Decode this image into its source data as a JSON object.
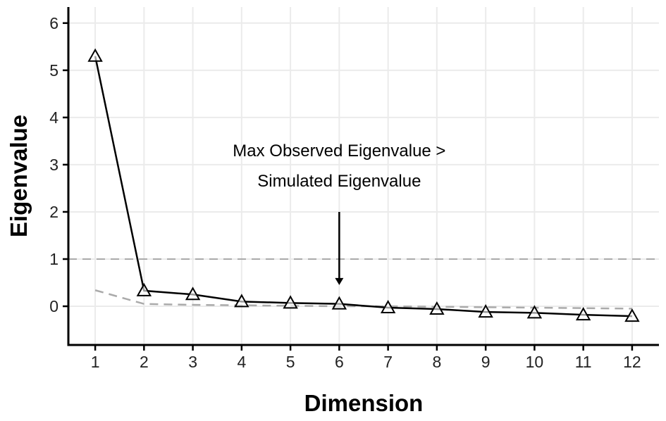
{
  "chart_data": {
    "type": "line",
    "xlabel": "Dimension",
    "ylabel": "Eigenvalue",
    "x": [
      1,
      2,
      3,
      4,
      5,
      6,
      7,
      8,
      9,
      10,
      11,
      12
    ],
    "xticks": [
      "1",
      "2",
      "3",
      "4",
      "5",
      "6",
      "7",
      "8",
      "9",
      "10",
      "11",
      "12"
    ],
    "yticks": [
      "0",
      "1",
      "2",
      "3",
      "4",
      "5",
      "6"
    ],
    "xlim": [
      0.45,
      12.55
    ],
    "ylim": [
      -0.82,
      6.34
    ],
    "grid": true,
    "series": [
      {
        "role": "observed",
        "style": "solid-black-triangles",
        "values": [
          5.3,
          0.33,
          0.25,
          0.1,
          0.07,
          0.05,
          -0.03,
          -0.06,
          -0.12,
          -0.14,
          -0.18,
          -0.21
        ]
      },
      {
        "role": "simulated",
        "style": "dashed-gray",
        "values": [
          0.34,
          0.05,
          0.03,
          0.02,
          0.01,
          0.0,
          0.0,
          -0.01,
          -0.02,
          -0.03,
          -0.04,
          -0.05
        ]
      }
    ],
    "reference_line": {
      "y": 1,
      "style": "dashed-gray"
    },
    "annotation": {
      "lines": [
        "Max Observed Eigenvalue >",
        "Simulated Eigenvalue"
      ],
      "arrow_x": 6,
      "arrow_from_y": 2.0,
      "arrow_to_y": 0.45
    },
    "colors": {
      "observed": "#000000",
      "simulated": "#aaaaaa",
      "grid": "#ebebeb"
    }
  }
}
